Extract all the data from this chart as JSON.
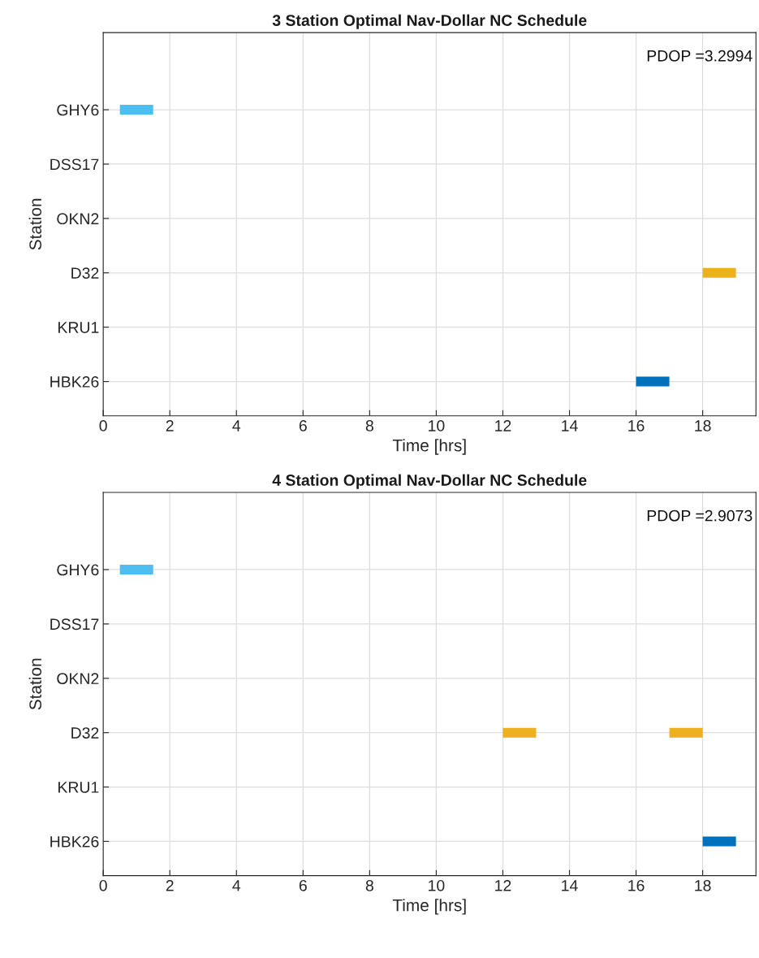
{
  "chart_data": [
    {
      "type": "bar",
      "orientation": "horizontal",
      "title": "3 Station Optimal Nav-Dollar NC Schedule",
      "xlabel": "Time [hrs]",
      "ylabel": "Station",
      "categories": [
        "GHY6",
        "DSS17",
        "OKN2",
        "D32",
        "KRU1",
        "HBK26"
      ],
      "series": [
        {
          "color": "#4dbeee",
          "base": [
            0.5,
            null,
            null,
            null,
            null,
            null
          ],
          "values": [
            1,
            null,
            null,
            null,
            null,
            null
          ]
        },
        {
          "color": "#edb120",
          "base": [
            null,
            null,
            null,
            18,
            null,
            null
          ],
          "values": [
            null,
            null,
            null,
            1,
            null,
            null
          ]
        },
        {
          "color": "#0072bd",
          "base": [
            null,
            null,
            null,
            null,
            null,
            16
          ],
          "values": [
            null,
            null,
            null,
            null,
            null,
            1
          ]
        }
      ],
      "xlim": [
        0,
        19.6
      ],
      "xticks": [
        0,
        2,
        4,
        6,
        8,
        10,
        12,
        14,
        16,
        18
      ],
      "grid": true,
      "annotations": [
        "PDOP =3.2994"
      ]
    },
    {
      "type": "bar",
      "orientation": "horizontal",
      "title": "4 Station Optimal Nav-Dollar NC Schedule",
      "xlabel": "Time [hrs]",
      "ylabel": "Station",
      "categories": [
        "GHY6",
        "DSS17",
        "OKN2",
        "D32",
        "KRU1",
        "HBK26"
      ],
      "series": [
        {
          "color": "#4dbeee",
          "base": [
            0.5,
            null,
            null,
            null,
            null,
            null
          ],
          "values": [
            1,
            null,
            null,
            null,
            null,
            null
          ]
        },
        {
          "color": "#edb120",
          "base": [
            null,
            null,
            null,
            12,
            null,
            null
          ],
          "values": [
            null,
            null,
            null,
            1,
            null,
            null
          ]
        },
        {
          "color": "#edb120",
          "base": [
            null,
            null,
            null,
            17,
            null,
            null
          ],
          "values": [
            null,
            null,
            null,
            1,
            null,
            null
          ]
        },
        {
          "color": "#0072bd",
          "base": [
            null,
            null,
            null,
            null,
            null,
            18
          ],
          "values": [
            null,
            null,
            null,
            null,
            null,
            1
          ]
        }
      ],
      "xlim": [
        0,
        19.6
      ],
      "xticks": [
        0,
        2,
        4,
        6,
        8,
        10,
        12,
        14,
        16,
        18
      ],
      "grid": true,
      "annotations": [
        "PDOP =2.9073"
      ]
    }
  ]
}
